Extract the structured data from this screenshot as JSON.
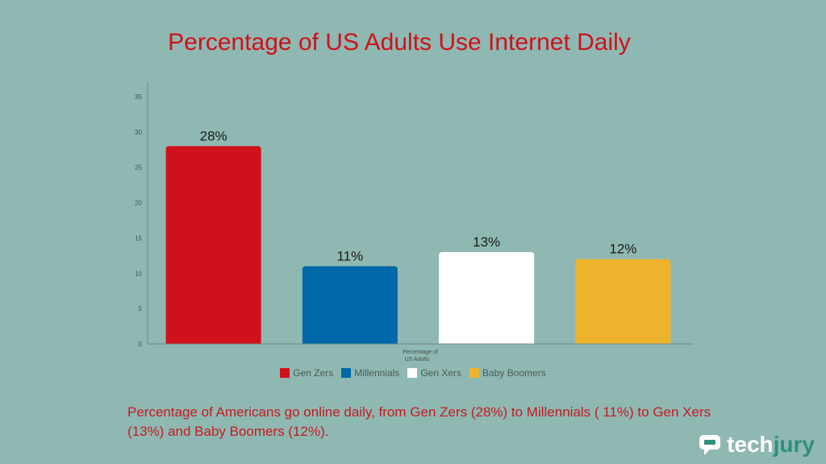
{
  "chart_data": {
    "type": "bar",
    "title": "Percentage of US Adults Use Internet Daily",
    "categories": [
      "Gen Zers",
      "Millennials",
      "Gen Xers",
      "Baby Boomers"
    ],
    "values": [
      28,
      11,
      13,
      12
    ],
    "data_labels": [
      "28%",
      "11%",
      "13%",
      "12%"
    ],
    "colors": [
      "#d0101a",
      "#0068a8",
      "#ffffff",
      "#eeb32d"
    ],
    "xlabel": "Percentage of US Adults",
    "ylabel": "",
    "ylim": [
      0,
      35
    ],
    "yticks": [
      0,
      5,
      10,
      15,
      20,
      25,
      30,
      35
    ],
    "grid": false,
    "legend": "bottom"
  },
  "caption": "Percentage of Americans go online daily, from Gen Zers (28%) to Millennials ( 11%) to Gen Xers (13%) and Baby Boomers (12%).",
  "brand": {
    "tech": "tech",
    "jury": "jury",
    "icon": "chat-bubble-logo-icon"
  }
}
